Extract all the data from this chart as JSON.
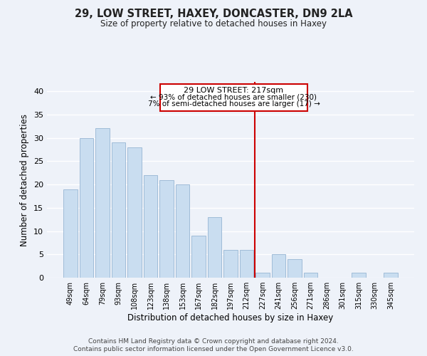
{
  "title": "29, LOW STREET, HAXEY, DONCASTER, DN9 2LA",
  "subtitle": "Size of property relative to detached houses in Haxey",
  "xlabel": "Distribution of detached houses by size in Haxey",
  "ylabel": "Number of detached properties",
  "bar_labels": [
    "49sqm",
    "64sqm",
    "79sqm",
    "93sqm",
    "108sqm",
    "123sqm",
    "138sqm",
    "153sqm",
    "167sqm",
    "182sqm",
    "197sqm",
    "212sqm",
    "227sqm",
    "241sqm",
    "256sqm",
    "271sqm",
    "286sqm",
    "301sqm",
    "315sqm",
    "330sqm",
    "345sqm"
  ],
  "bar_values": [
    19,
    30,
    32,
    29,
    28,
    22,
    21,
    20,
    9,
    13,
    6,
    6,
    1,
    5,
    4,
    1,
    0,
    0,
    1,
    0,
    1
  ],
  "bar_color": "#c9ddf0",
  "bar_edge_color": "#a0bcd8",
  "ylim": [
    0,
    42
  ],
  "yticks": [
    0,
    5,
    10,
    15,
    20,
    25,
    30,
    35,
    40
  ],
  "property_line_color": "#cc0000",
  "annotation_title": "29 LOW STREET: 217sqm",
  "annotation_line1": "← 93% of detached houses are smaller (230)",
  "annotation_line2": "7% of semi-detached houses are larger (17) →",
  "annotation_box_color": "#ffffff",
  "annotation_box_edge": "#cc0000",
  "footer_line1": "Contains HM Land Registry data © Crown copyright and database right 2024.",
  "footer_line2": "Contains public sector information licensed under the Open Government Licence v3.0.",
  "background_color": "#eef2f9",
  "grid_color": "#ffffff"
}
